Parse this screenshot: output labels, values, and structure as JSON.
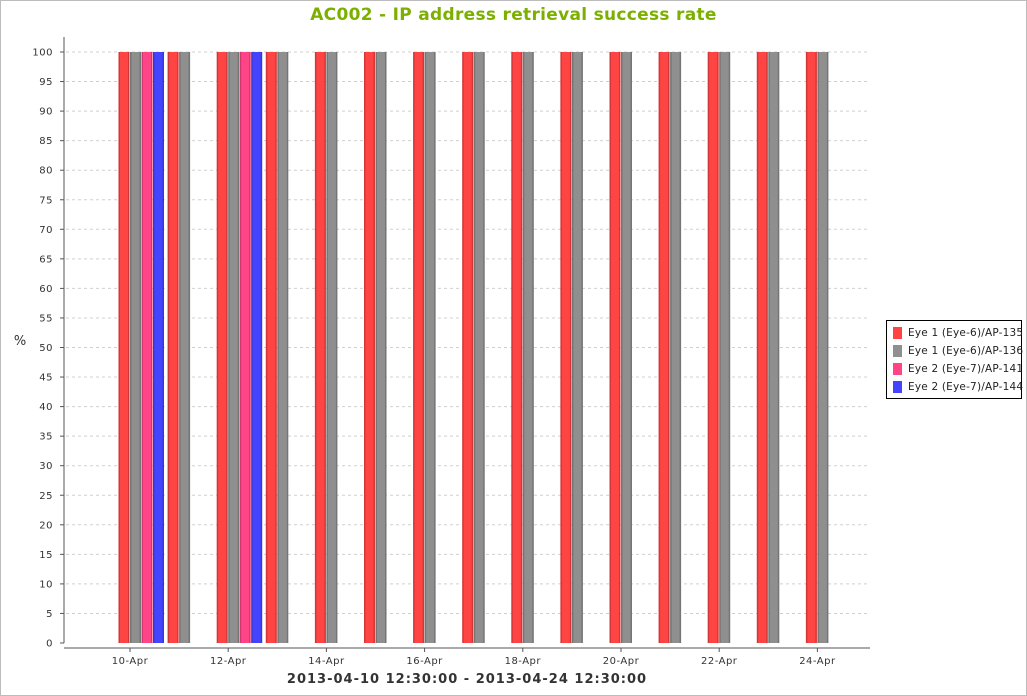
{
  "chart_data": {
    "type": "bar",
    "title": "AC002 - IP address retrieval success rate",
    "xlabel": "2013-04-10 12:30:00 - 2013-04-24 12:30:00",
    "ylabel": "%",
    "ylim": [
      0,
      100
    ],
    "ytick_step": 5,
    "grid": true,
    "legend_position": "right",
    "x_start": "2013-04-10",
    "x_end": "2013-04-24",
    "x_ticks": [
      "10-Apr",
      "12-Apr",
      "14-Apr",
      "16-Apr",
      "18-Apr",
      "20-Apr",
      "22-Apr",
      "24-Apr"
    ],
    "categories": [
      "10-Apr",
      "11-Apr",
      "12-Apr",
      "13-Apr",
      "14-Apr",
      "15-Apr",
      "16-Apr",
      "17-Apr",
      "18-Apr",
      "19-Apr",
      "20-Apr",
      "21-Apr",
      "22-Apr",
      "23-Apr",
      "24-Apr"
    ],
    "series": [
      {
        "name": "Eye 1 (Eye-6)/AP-135",
        "color": "#ff4444",
        "values": [
          100,
          100,
          100,
          100,
          100,
          100,
          100,
          100,
          100,
          100,
          100,
          100,
          100,
          100,
          100
        ]
      },
      {
        "name": "Eye 1 (Eye-6)/AP-136",
        "color": "#8f8f8f",
        "values": [
          100,
          100,
          100,
          100,
          100,
          100,
          100,
          100,
          100,
          100,
          100,
          100,
          100,
          100,
          100
        ]
      },
      {
        "name": "Eye 2 (Eye-7)/AP-141",
        "color": "#ff4488",
        "values": [
          100,
          null,
          100,
          null,
          null,
          null,
          null,
          null,
          null,
          null,
          null,
          null,
          null,
          null,
          null
        ]
      },
      {
        "name": "Eye 2 (Eye-7)/AP-144",
        "color": "#4444ff",
        "values": [
          100,
          null,
          100,
          null,
          null,
          null,
          null,
          null,
          null,
          null,
          null,
          null,
          null,
          null,
          null
        ]
      }
    ]
  }
}
